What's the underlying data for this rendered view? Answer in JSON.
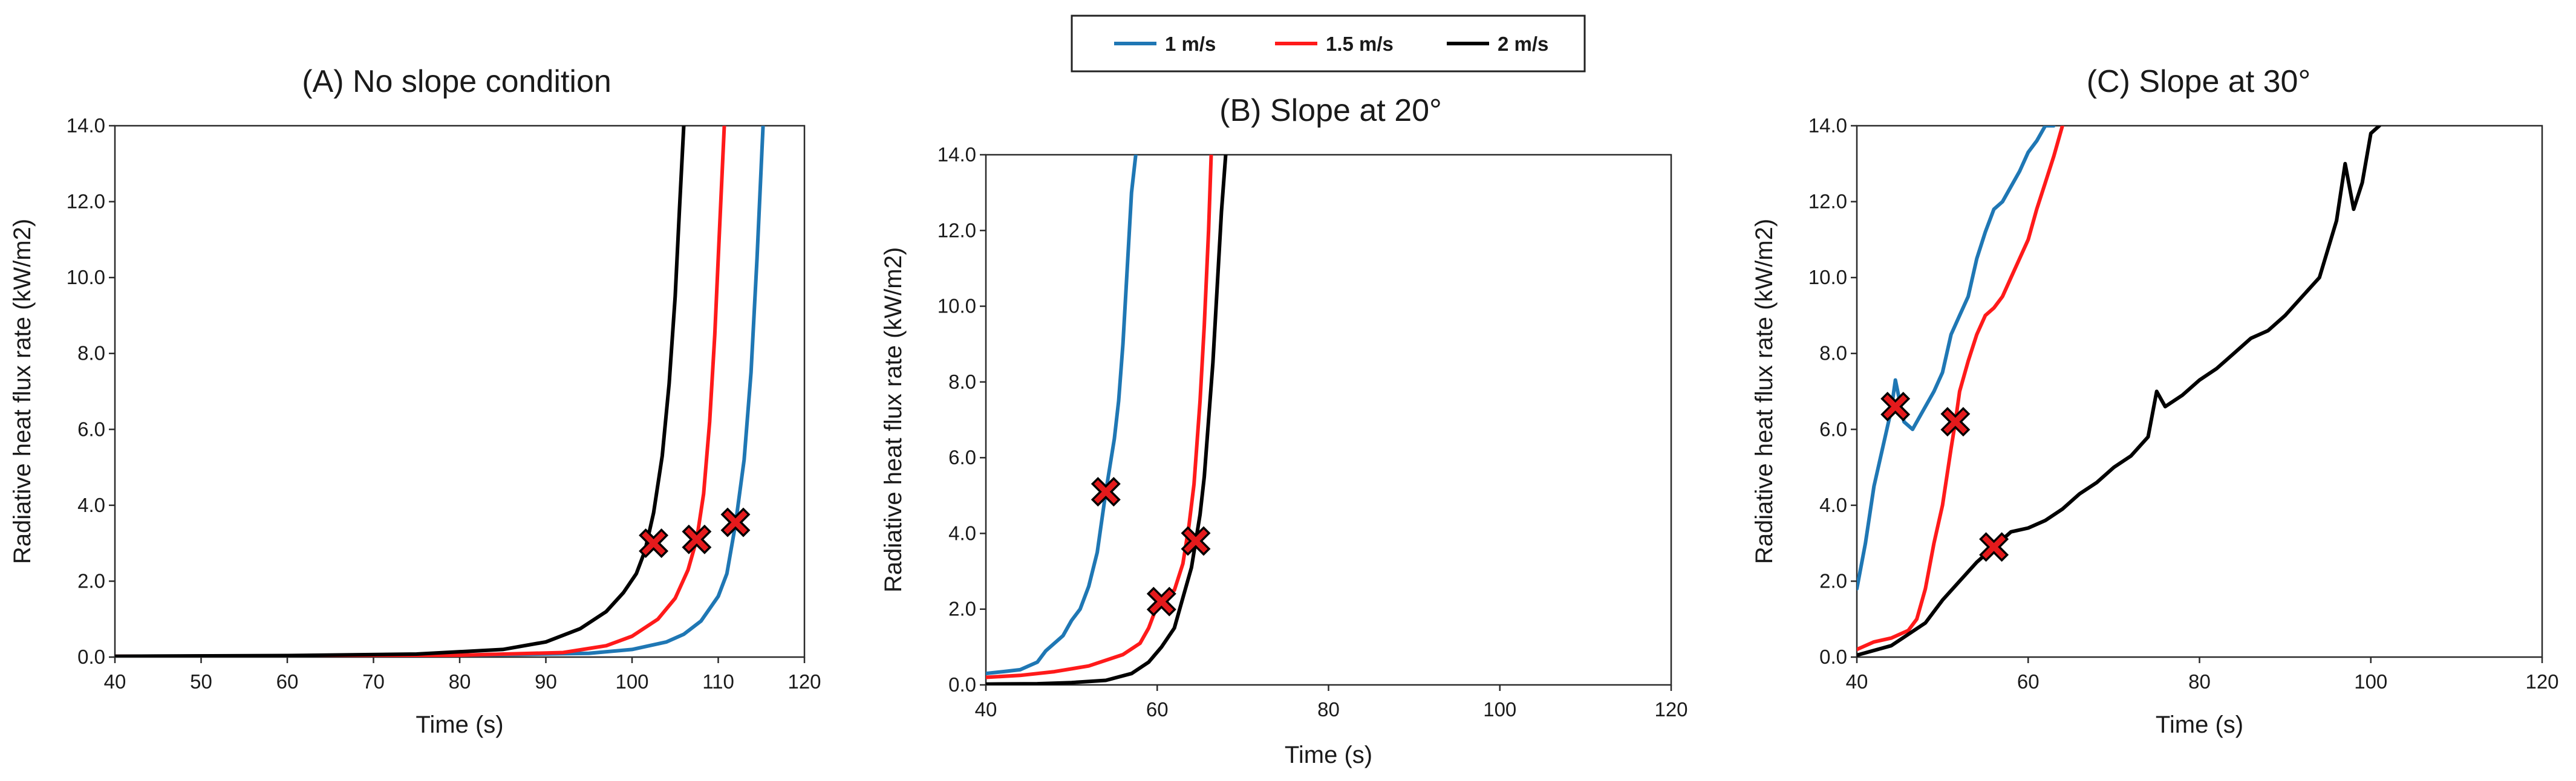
{
  "legend": {
    "items": [
      {
        "label": "1 m/s",
        "color": "#1f77b4"
      },
      {
        "label": "1.5 m/s",
        "color": "#ff1a1a"
      },
      {
        "label": "2 m/s",
        "color": "#000000"
      }
    ]
  },
  "marker_style": {
    "shape": "x-cross",
    "fill": "#e41a1c",
    "stroke": "#000000"
  },
  "chart_data": [
    {
      "type": "line",
      "title": "(A) No slope condition",
      "xlabel": "Time (s)",
      "ylabel": "Radiative heat flux rate (kW/m2)",
      "xlim": [
        40,
        120
      ],
      "ylim": [
        0,
        14
      ],
      "xticks": [
        40,
        50,
        60,
        70,
        80,
        90,
        100,
        110,
        120
      ],
      "xtick_labels": [
        "40",
        "50",
        "60",
        "70",
        "80",
        "90",
        "100",
        "110",
        "120"
      ],
      "yticks": [
        0,
        2,
        4,
        6,
        8,
        10,
        12,
        14
      ],
      "ytick_labels": [
        "0.0",
        "2.0",
        "4.0",
        "6.0",
        "8.0",
        "10.0",
        "12.0",
        "14.0"
      ],
      "series": [
        {
          "name": "1 m/s",
          "color": "#1f77b4",
          "x": [
            40,
            60,
            80,
            95,
            100,
            104,
            106,
            108,
            110,
            111,
            112,
            113,
            113.8,
            114.5,
            115.2
          ],
          "y": [
            0.02,
            0.03,
            0.05,
            0.1,
            0.2,
            0.4,
            0.6,
            0.95,
            1.6,
            2.2,
            3.5,
            5.2,
            7.5,
            10.5,
            14
          ]
        },
        {
          "name": "1.5 m/s",
          "color": "#ff1a1a",
          "x": [
            40,
            60,
            80,
            92,
            97,
            100,
            103,
            105,
            106.5,
            107.5,
            108.3,
            109,
            109.6,
            110.2,
            110.7
          ],
          "y": [
            0.02,
            0.03,
            0.05,
            0.12,
            0.3,
            0.55,
            1.0,
            1.55,
            2.3,
            3.1,
            4.3,
            6.2,
            8.5,
            11.5,
            14
          ]
        },
        {
          "name": "2 m/s",
          "color": "#000000",
          "x": [
            40,
            60,
            75,
            85,
            90,
            94,
            97,
            99,
            100.5,
            101.5,
            102.5,
            103.5,
            104.3,
            105,
            105.5,
            106
          ],
          "y": [
            0.02,
            0.04,
            0.08,
            0.2,
            0.4,
            0.75,
            1.2,
            1.7,
            2.2,
            2.8,
            3.8,
            5.3,
            7.2,
            9.5,
            11.8,
            14
          ]
        }
      ],
      "markers": [
        {
          "series": "2 m/s",
          "x": 102.5,
          "y": 3.0
        },
        {
          "series": "1.5 m/s",
          "x": 107.5,
          "y": 3.1
        },
        {
          "series": "1 m/s",
          "x": 112,
          "y": 3.55
        }
      ]
    },
    {
      "type": "line",
      "title": "(B) Slope at 20°",
      "xlabel": "Time (s)",
      "ylabel": "Radiative heat flux rate (kW/m2)",
      "xlim": [
        40,
        120
      ],
      "ylim": [
        0,
        14
      ],
      "xticks": [
        40,
        60,
        80,
        100,
        120
      ],
      "xtick_labels": [
        "40",
        "60",
        "80",
        "100",
        "120"
      ],
      "yticks": [
        0,
        2,
        4,
        6,
        8,
        10,
        12,
        14
      ],
      "ytick_labels": [
        "0.0",
        "2.0",
        "4.0",
        "6.0",
        "8.0",
        "10.0",
        "12.0",
        "14.0"
      ],
      "series": [
        {
          "name": "1 m/s",
          "color": "#1f77b4",
          "x": [
            40,
            42,
            44,
            46,
            47,
            48,
            49,
            50,
            51,
            52,
            53,
            54,
            55,
            55.5,
            56,
            56.5,
            57,
            57.5
          ],
          "y": [
            0.3,
            0.35,
            0.4,
            0.6,
            0.9,
            1.1,
            1.3,
            1.7,
            2.0,
            2.6,
            3.5,
            5.1,
            6.5,
            7.5,
            9.0,
            11.0,
            13.0,
            14
          ]
        },
        {
          "name": "1.5 m/s",
          "color": "#ff1a1a",
          "x": [
            40,
            44,
            48,
            52,
            56,
            58,
            59,
            60,
            61,
            62,
            63,
            63.7,
            64.3,
            65,
            65.5,
            66,
            66.3
          ],
          "y": [
            0.2,
            0.25,
            0.35,
            0.5,
            0.8,
            1.1,
            1.5,
            2.1,
            2.4,
            2.5,
            3.2,
            4.2,
            5.3,
            7.5,
            9.5,
            12.0,
            14
          ]
        },
        {
          "name": "2 m/s",
          "color": "#000000",
          "x": [
            40,
            46,
            50,
            54,
            57,
            59,
            60.5,
            62,
            63,
            64,
            64.5,
            65,
            65.5,
            66,
            66.5,
            67,
            67.5,
            68
          ],
          "y": [
            0.02,
            0.03,
            0.06,
            0.12,
            0.3,
            0.6,
            1.0,
            1.5,
            2.3,
            3.1,
            3.8,
            4.5,
            5.5,
            7.0,
            8.5,
            10.5,
            12.5,
            14
          ]
        }
      ],
      "markers": [
        {
          "series": "1 m/s",
          "x": 54,
          "y": 5.1
        },
        {
          "series": "1.5 m/s",
          "x": 60.5,
          "y": 2.2
        },
        {
          "series": "2 m/s",
          "x": 64.5,
          "y": 3.8
        }
      ]
    },
    {
      "type": "line",
      "title": "(C) Slope at 30°",
      "xlabel": "Time (s)",
      "ylabel": "Radiative heat flux rate (kW/m2)",
      "xlim": [
        40,
        120
      ],
      "ylim": [
        0,
        14
      ],
      "xticks": [
        40,
        60,
        80,
        100,
        120
      ],
      "xtick_labels": [
        "40",
        "60",
        "80",
        "100",
        "120"
      ],
      "yticks": [
        0,
        2,
        4,
        6,
        8,
        10,
        12,
        14
      ],
      "ytick_labels": [
        "0.0",
        "2.0",
        "4.0",
        "6.0",
        "8.0",
        "10.0",
        "12.0",
        "14.0"
      ],
      "series": [
        {
          "name": "1 m/s",
          "color": "#1f77b4",
          "x": [
            40,
            41,
            42,
            43,
            44,
            44.5,
            45.5,
            46.5,
            47.5,
            49,
            50,
            51,
            52,
            53,
            54,
            55,
            56,
            57,
            58,
            59,
            60,
            61,
            62,
            63
          ],
          "y": [
            1.8,
            3.0,
            4.5,
            5.5,
            6.5,
            7.3,
            6.2,
            6.0,
            6.4,
            7.0,
            7.5,
            8.5,
            9.0,
            9.5,
            10.5,
            11.2,
            11.8,
            12.0,
            12.4,
            12.8,
            13.3,
            13.6,
            14.0,
            14.0
          ]
        },
        {
          "name": "1.5 m/s",
          "color": "#ff1a1a",
          "x": [
            40,
            42,
            44,
            46,
            47,
            48,
            49,
            50,
            51,
            51.5,
            52,
            53,
            54,
            55,
            56,
            57,
            58,
            59,
            60,
            61,
            62,
            63,
            64
          ],
          "y": [
            0.2,
            0.4,
            0.5,
            0.7,
            1.0,
            1.8,
            3.0,
            4.0,
            5.5,
            6.2,
            7.0,
            7.8,
            8.5,
            9.0,
            9.2,
            9.5,
            10.0,
            10.5,
            11.0,
            11.8,
            12.5,
            13.2,
            14
          ]
        },
        {
          "name": "2 m/s",
          "color": "#000000",
          "x": [
            40,
            44,
            48,
            50,
            52,
            54,
            56,
            58,
            60,
            62,
            64,
            66,
            68,
            70,
            72,
            74,
            75,
            76,
            78,
            80,
            82,
            84,
            86,
            88,
            90,
            92,
            94,
            96,
            97,
            98,
            99,
            100,
            101
          ],
          "y": [
            0.05,
            0.3,
            0.9,
            1.5,
            2.0,
            2.5,
            2.9,
            3.3,
            3.4,
            3.6,
            3.9,
            4.3,
            4.6,
            5.0,
            5.3,
            5.8,
            7.0,
            6.6,
            6.9,
            7.3,
            7.6,
            8.0,
            8.4,
            8.6,
            9.0,
            9.5,
            10.0,
            11.5,
            13.0,
            11.8,
            12.5,
            13.8,
            14
          ]
        }
      ],
      "markers": [
        {
          "series": "1 m/s",
          "x": 44.5,
          "y": 6.6
        },
        {
          "series": "1.5 m/s",
          "x": 51.5,
          "y": 6.2
        },
        {
          "series": "2 m/s",
          "x": 56,
          "y": 2.9
        }
      ]
    }
  ]
}
